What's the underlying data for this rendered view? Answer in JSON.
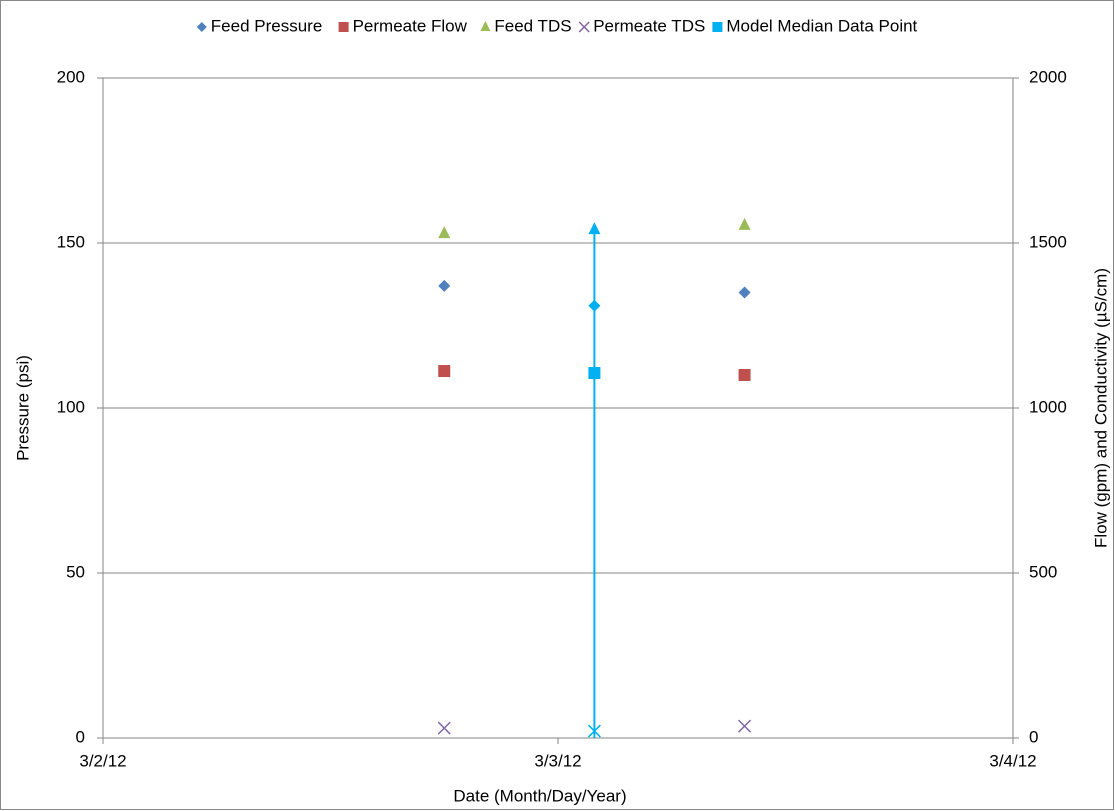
{
  "chart_data": {
    "type": "scatter",
    "xlabel": "Date (Month/Day/Year)",
    "ylabel": "Pressure (psi)",
    "y2label": "Flow (gpm) and Conductivity (µS/cm)",
    "xlim": [
      0,
      2
    ],
    "xticks": [
      {
        "value": 0,
        "label": "3/2/12"
      },
      {
        "value": 1,
        "label": "3/3/12"
      },
      {
        "value": 2,
        "label": "3/4/12"
      }
    ],
    "ylim": [
      0,
      200
    ],
    "yticks": [
      0,
      50,
      100,
      150,
      200
    ],
    "y2lim": [
      0,
      2000
    ],
    "y2ticks": [
      0,
      500,
      1000,
      1500,
      2000
    ],
    "grid": true,
    "legend": "top",
    "series": [
      {
        "name": "Feed Pressure",
        "color": "#4f81bd",
        "marker": "diamond",
        "x": [
          0.75,
          1.41
        ],
        "values": [
          137,
          135
        ]
      },
      {
        "name": "Permeate Flow",
        "color": "#c0504d",
        "marker": "square",
        "axis": "y2",
        "x": [
          0.75,
          1.41
        ],
        "values": [
          1112,
          1100
        ]
      },
      {
        "name": "Feed TDS",
        "color": "#9bbb59",
        "marker": "triangle",
        "axis": "y2",
        "x": [
          0.75,
          1.41
        ],
        "values": [
          1530,
          1555
        ]
      },
      {
        "name": "Permeate TDS",
        "color": "#8064a2",
        "marker": "x",
        "axis": "y2",
        "x": [
          0.75,
          1.41
        ],
        "values": [
          30,
          36
        ]
      },
      {
        "name": "Model Median Data Point",
        "color": "#00b0f0",
        "marker": "square",
        "x": [
          1.08,
          1.08,
          1.08,
          1.08
        ],
        "values": [
          131,
          1106,
          1542,
          21
        ],
        "axes": [
          "y",
          "y2",
          "y2",
          "y2"
        ],
        "markers": [
          "diamond",
          "square",
          "triangle",
          "x"
        ],
        "drop_line": true
      }
    ]
  }
}
